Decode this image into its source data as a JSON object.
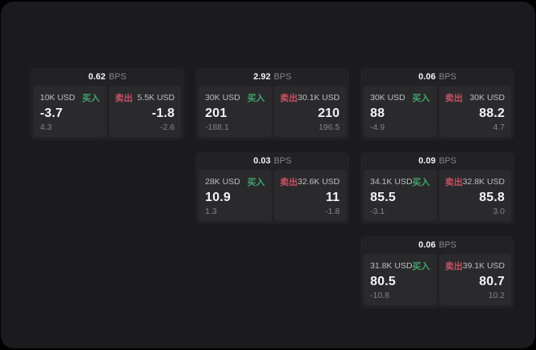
{
  "theme": {
    "colors": {
      "panel_bg": "#1b1b1d",
      "card_bg": "#222224",
      "tile_bg": "#2a2a2c",
      "label_text": "#bfbfc3",
      "dim_text": "#85858a",
      "buy_green": "#3fa56a",
      "sell_red": "#c95062"
    }
  },
  "labels": {
    "buy": "买入",
    "sell": "卖出",
    "bps_unit": "BPS"
  },
  "cards": [
    {
      "row": 1,
      "col": 1,
      "bps": "0.62",
      "buy": {
        "amount": "10K USD",
        "price": "-3.7",
        "delta": "4.3"
      },
      "sell": {
        "amount": "5.5K USD",
        "price": "-1.8",
        "delta": "-2.6"
      }
    },
    {
      "row": 1,
      "col": 2,
      "bps": "2.92",
      "buy": {
        "amount": "30K USD",
        "price": "201",
        "delta": "-188.1"
      },
      "sell": {
        "amount": "30.1K USD",
        "price": "210",
        "delta": "196.5"
      }
    },
    {
      "row": 1,
      "col": 3,
      "bps": "0.06",
      "buy": {
        "amount": "30K USD",
        "price": "88",
        "delta": "-4.9"
      },
      "sell": {
        "amount": "30K USD",
        "price": "88.2",
        "delta": "4.7"
      }
    },
    {
      "row": 2,
      "col": 2,
      "bps": "0.03",
      "buy": {
        "amount": "28K USD",
        "price": "10.9",
        "delta": "1.3"
      },
      "sell": {
        "amount": "32.6K USD",
        "price": "11",
        "delta": "-1.8"
      }
    },
    {
      "row": 2,
      "col": 3,
      "bps": "0.09",
      "buy": {
        "amount": "34.1K USD",
        "price": "85.5",
        "delta": "-3.1"
      },
      "sell": {
        "amount": "32.8K USD",
        "price": "85.8",
        "delta": "3.0"
      }
    },
    {
      "row": 3,
      "col": 3,
      "bps": "0.06",
      "buy": {
        "amount": "31.8K USD",
        "price": "80.5",
        "delta": "-10.8"
      },
      "sell": {
        "amount": "39.1K USD",
        "price": "80.7",
        "delta": "10.2"
      }
    }
  ]
}
